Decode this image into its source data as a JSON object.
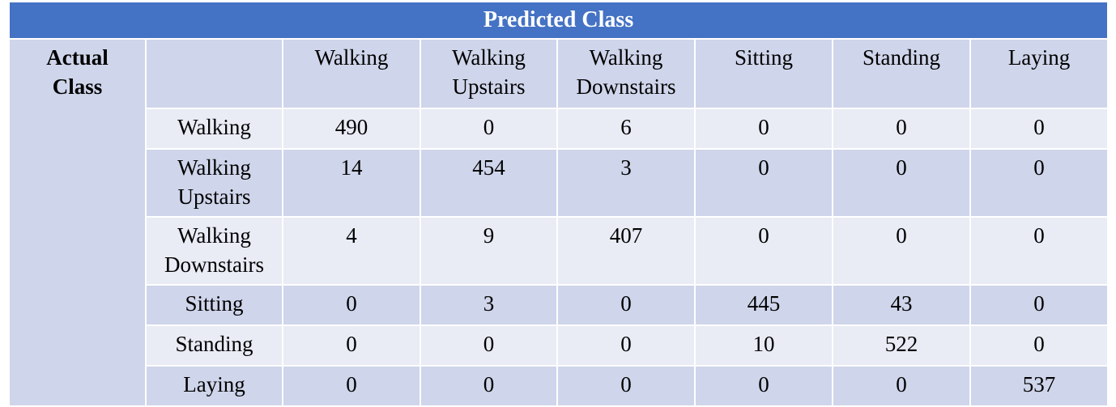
{
  "table": {
    "title": "Predicted Class",
    "actual_label_line1": "Actual",
    "actual_label_line2": "Class",
    "columns": [
      {
        "line1": "Walking",
        "line2": ""
      },
      {
        "line1": "Walking",
        "line2": "Upstairs"
      },
      {
        "line1": "Walking",
        "line2": "Downstairs"
      },
      {
        "line1": "Sitting",
        "line2": ""
      },
      {
        "line1": "Standing",
        "line2": ""
      },
      {
        "line1": "Laying",
        "line2": ""
      }
    ],
    "rows": [
      {
        "line1": "Walking",
        "line2": "",
        "values": [
          "490",
          "0",
          "6",
          "0",
          "0",
          "0"
        ]
      },
      {
        "line1": "Walking",
        "line2": "Upstairs",
        "values": [
          "14",
          "454",
          "3",
          "0",
          "0",
          "0"
        ]
      },
      {
        "line1": "Walking",
        "line2": "Downstairs",
        "values": [
          "4",
          "9",
          "407",
          "0",
          "0",
          "0"
        ]
      },
      {
        "line1": "Sitting",
        "line2": "",
        "values": [
          "0",
          "3",
          "0",
          "445",
          "43",
          "0"
        ]
      },
      {
        "line1": "Standing",
        "line2": "",
        "values": [
          "0",
          "0",
          "0",
          "10",
          "522",
          "0"
        ]
      },
      {
        "line1": "Laying",
        "line2": "",
        "values": [
          "0",
          "0",
          "0",
          "0",
          "0",
          "537"
        ]
      }
    ],
    "colors": {
      "header": "#4472c4",
      "band_dark": "#cfd5ea",
      "band_light": "#e9ebf5",
      "grid": "#ffffff"
    }
  }
}
